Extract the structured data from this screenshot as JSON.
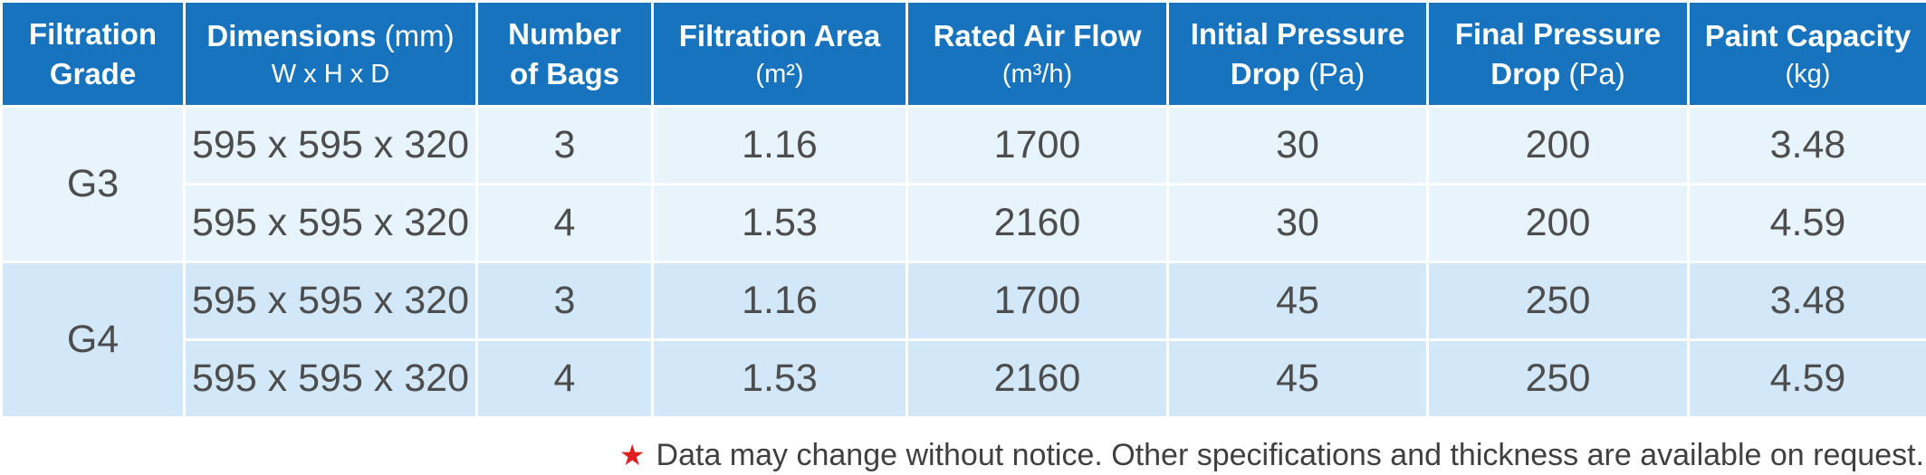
{
  "table": {
    "headers": [
      {
        "main": "Filtration",
        "line2": "Grade",
        "sub": "",
        "sub2": ""
      },
      {
        "main": "Dimensions",
        "sub": "(mm)",
        "line2": "",
        "sub2": "W x H x D"
      },
      {
        "main": "Number",
        "line2": "of Bags",
        "sub": "",
        "sub2": ""
      },
      {
        "main": "Filtration Area",
        "line2": "",
        "sub": "",
        "sub2": "(m²)"
      },
      {
        "main": "Rated Air Flow",
        "line2": "",
        "sub": "",
        "sub2": "(m³/h)"
      },
      {
        "main": "Initial Pressure",
        "line2": "Drop",
        "sub": "(Pa)",
        "sub2": ""
      },
      {
        "main": "Final Pressure",
        "line2": "Drop",
        "sub": "(Pa)",
        "sub2": ""
      },
      {
        "main": "Paint Capacity",
        "line2": "",
        "sub": "",
        "sub2": "(kg)"
      }
    ],
    "groups": [
      {
        "grade": "G3",
        "rows": [
          {
            "dimensions": "595 x 595 x 320",
            "bags": "3",
            "area": "1.16",
            "airflow": "1700",
            "initial_drop": "30",
            "final_drop": "200",
            "capacity": "3.48"
          },
          {
            "dimensions": "595 x 595 x 320",
            "bags": "4",
            "area": "1.53",
            "airflow": "2160",
            "initial_drop": "30",
            "final_drop": "200",
            "capacity": "4.59"
          }
        ]
      },
      {
        "grade": "G4",
        "rows": [
          {
            "dimensions": "595 x 595 x 320",
            "bags": "3",
            "area": "1.16",
            "airflow": "1700",
            "initial_drop": "45",
            "final_drop": "250",
            "capacity": "3.48"
          },
          {
            "dimensions": "595 x 595 x 320",
            "bags": "4",
            "area": "1.53",
            "airflow": "2160",
            "initial_drop": "45",
            "final_drop": "250",
            "capacity": "4.59"
          }
        ]
      }
    ]
  },
  "footnote": {
    "star": "★",
    "text": "Data may change without notice. Other specifications and thickness are available on request."
  },
  "colors": {
    "header_bg": "#1873be",
    "g3_bg": "#e8f4fc",
    "g4_bg": "#d2e8f8",
    "star": "#e02020"
  }
}
